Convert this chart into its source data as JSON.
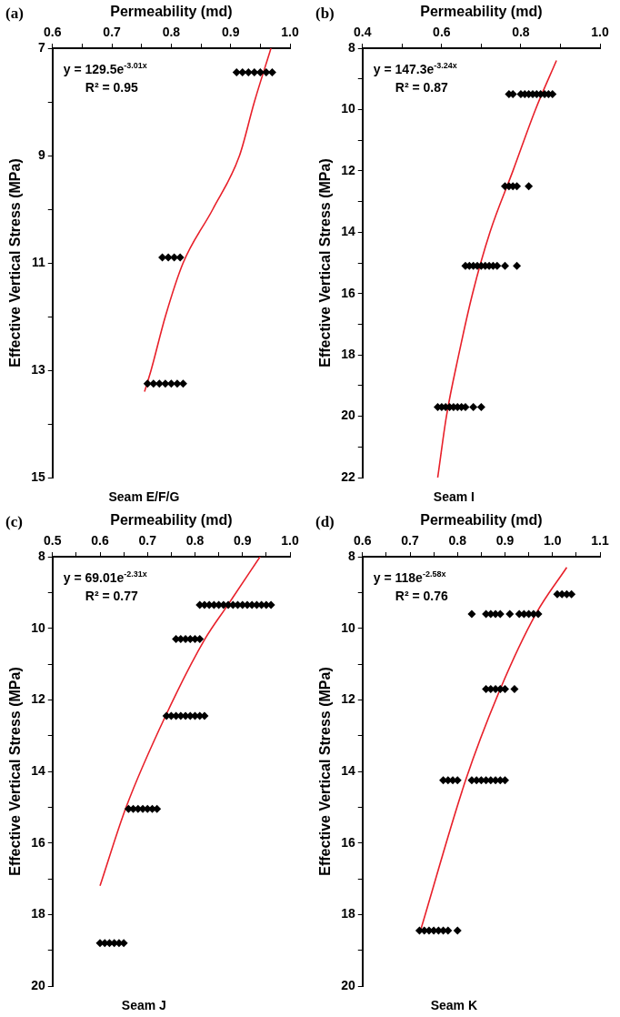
{
  "chart_data": [
    {
      "type": "scatter",
      "title": "(a)",
      "xlabel": "Permeability (md)",
      "ylabel": "Effective Vertical Stress (MPa)",
      "annotations": [
        "y = 129.5e$^{-3.01x}$",
        "R² = 0.95",
        "Seam E/F/G"
      ],
      "xlim": [
        0.6,
        1.0
      ],
      "xticks": [
        0.6,
        {
          "value": 0.65,
          "label": null
        },
        0.7,
        {
          "value": 0.75,
          "label": null
        },
        0.8,
        {
          "value": 0.85,
          "label": null
        },
        0.9,
        {
          "value": 0.95,
          "label": null
        },
        {
          "value": 1.0,
          "label": "1.0"
        }
      ],
      "ylim": [
        15,
        7
      ],
      "yticks": [
        7,
        {
          "value": 8,
          "label": null
        },
        9,
        {
          "value": 10,
          "label": null
        },
        11,
        {
          "value": 12,
          "label": null
        },
        13,
        {
          "value": 14,
          "label": null
        },
        15
      ],
      "grid": false,
      "legend": false,
      "series": [
        {
          "marker": "diamond",
          "color": "#000000",
          "x": [
            0.91,
            0.92,
            0.93,
            0.94,
            0.95,
            0.96,
            0.97,
            0.785,
            0.795,
            0.805,
            0.815,
            0.76,
            0.77,
            0.78,
            0.79,
            0.8,
            0.81,
            0.82
          ],
          "values": [
            7.45,
            7.45,
            7.45,
            7.45,
            7.45,
            7.45,
            7.45,
            10.9,
            10.9,
            10.9,
            10.9,
            13.25,
            13.25,
            13.25,
            13.25,
            13.25,
            13.25,
            13.25
          ]
        },
        {
          "type": "line",
          "marker": "none",
          "color": "#e8202a",
          "x": [
            0.968,
            0.94,
            0.915,
            0.87,
            0.82,
            0.79,
            0.766,
            0.755
          ],
          "values": [
            7,
            8,
            9,
            10,
            11,
            12,
            13,
            13.4
          ]
        }
      ]
    },
    {
      "type": "scatter",
      "title": "(b)",
      "xlabel": "Permeability (md)",
      "ylabel": "Effective Vertical Stress (MPa)",
      "annotations": [
        "y = 147.3e$^{-3.24x}$",
        "R² = 0.87",
        "Seam I"
      ],
      "xlim": [
        0.4,
        1.0
      ],
      "xticks": [
        0.4,
        {
          "value": 0.5,
          "label": null
        },
        0.6,
        {
          "value": 0.7,
          "label": null
        },
        0.8,
        {
          "value": 0.9,
          "label": null
        },
        {
          "value": 1.0,
          "label": "1.0"
        }
      ],
      "ylim": [
        22,
        8
      ],
      "yticks": [
        8,
        {
          "value": 9,
          "label": null
        },
        10,
        {
          "value": 11,
          "label": null
        },
        12,
        {
          "value": 13,
          "label": null
        },
        14,
        {
          "value": 15,
          "label": null
        },
        16,
        {
          "value": 17,
          "label": null
        },
        18,
        {
          "value": 19,
          "label": null
        },
        20,
        {
          "value": 21,
          "label": null
        },
        22
      ],
      "grid": false,
      "legend": false,
      "series": [
        {
          "marker": "diamond",
          "color": "#000000",
          "x": [
            0.77,
            0.78,
            0.8,
            0.81,
            0.82,
            0.83,
            0.84,
            0.85,
            0.86,
            0.87,
            0.88,
            0.76,
            0.77,
            0.78,
            0.79,
            0.82,
            0.66,
            0.67,
            0.68,
            0.69,
            0.7,
            0.71,
            0.72,
            0.73,
            0.74,
            0.76,
            0.79,
            0.59,
            0.6,
            0.61,
            0.62,
            0.63,
            0.64,
            0.65,
            0.66,
            0.68,
            0.7
          ],
          "values": [
            9.5,
            9.5,
            9.5,
            9.5,
            9.5,
            9.5,
            9.5,
            9.5,
            9.5,
            9.5,
            9.5,
            12.5,
            12.5,
            12.5,
            12.5,
            12.5,
            15.1,
            15.1,
            15.1,
            15.1,
            15.1,
            15.1,
            15.1,
            15.1,
            15.1,
            15.1,
            15.1,
            19.7,
            19.7,
            19.7,
            19.7,
            19.7,
            19.7,
            19.7,
            19.7,
            19.7,
            19.7
          ]
        },
        {
          "type": "line",
          "marker": "none",
          "color": "#e8202a",
          "x": [
            0.89,
            0.837,
            0.78,
            0.722,
            0.678,
            0.643,
            0.612,
            0.59
          ],
          "values": [
            8.4,
            10,
            12,
            14,
            16,
            18,
            20,
            22
          ]
        }
      ]
    },
    {
      "type": "scatter",
      "title": "(c)",
      "xlabel": "Permeability (md)",
      "ylabel": "Effective Vertical Stress (MPa)",
      "annotations": [
        "y = 69.01e$^{-2.31x}$",
        "R² = 0.77",
        "Seam J"
      ],
      "xlim": [
        0.5,
        1.0
      ],
      "xticks": [
        0.5,
        {
          "value": 0.55,
          "label": null
        },
        0.6,
        {
          "value": 0.65,
          "label": null
        },
        0.7,
        {
          "value": 0.75,
          "label": null
        },
        0.8,
        {
          "value": 0.85,
          "label": null
        },
        0.9,
        {
          "value": 0.95,
          "label": null
        },
        {
          "value": 1.0,
          "label": "1.0"
        }
      ],
      "ylim": [
        20,
        8
      ],
      "yticks": [
        8,
        {
          "value": 9,
          "label": null
        },
        10,
        {
          "value": 11,
          "label": null
        },
        12,
        {
          "value": 13,
          "label": null
        },
        14,
        {
          "value": 15,
          "label": null
        },
        16,
        {
          "value": 17,
          "label": null
        },
        18,
        {
          "value": 19,
          "label": null
        },
        20
      ],
      "grid": false,
      "legend": false,
      "series": [
        {
          "marker": "diamond",
          "color": "#000000",
          "x": [
            0.81,
            0.82,
            0.83,
            0.84,
            0.85,
            0.86,
            0.87,
            0.88,
            0.89,
            0.9,
            0.91,
            0.92,
            0.93,
            0.94,
            0.95,
            0.96,
            0.76,
            0.77,
            0.78,
            0.79,
            0.8,
            0.81,
            0.74,
            0.75,
            0.76,
            0.77,
            0.78,
            0.79,
            0.8,
            0.81,
            0.82,
            0.66,
            0.67,
            0.68,
            0.69,
            0.7,
            0.71,
            0.72,
            0.6,
            0.61,
            0.62,
            0.63,
            0.64,
            0.65
          ],
          "values": [
            9.35,
            9.35,
            9.35,
            9.35,
            9.35,
            9.35,
            9.35,
            9.35,
            9.35,
            9.35,
            9.35,
            9.35,
            9.35,
            9.35,
            9.35,
            9.35,
            10.3,
            10.3,
            10.3,
            10.3,
            10.3,
            10.3,
            12.45,
            12.45,
            12.45,
            12.45,
            12.45,
            12.45,
            12.45,
            12.45,
            12.45,
            15.05,
            15.05,
            15.05,
            15.05,
            15.05,
            15.05,
            15.05,
            18.8,
            18.8,
            18.8,
            18.8,
            18.8,
            18.8
          ]
        },
        {
          "type": "line",
          "marker": "none",
          "color": "#e8202a",
          "x": [
            0.937,
            0.869,
            0.821,
            0.738,
            0.655,
            0.6
          ],
          "values": [
            8,
            9.35,
            10.3,
            12.45,
            15,
            17.2
          ]
        }
      ]
    },
    {
      "type": "scatter",
      "title": "(d)",
      "xlabel": "Permeability (md)",
      "ylabel": "Effective Vertical Stress (MPa)",
      "annotations": [
        "y = 118e$^{-2.58x}$",
        "R² = 0.76",
        "Seam K"
      ],
      "xlim": [
        0.6,
        1.1
      ],
      "xticks": [
        0.6,
        {
          "value": 0.65,
          "label": null
        },
        0.7,
        {
          "value": 0.75,
          "label": null
        },
        0.8,
        {
          "value": 0.85,
          "label": null
        },
        0.9,
        {
          "value": 0.95,
          "label": null
        },
        {
          "value": 1.0,
          "label": "1.0"
        },
        {
          "value": 1.05,
          "label": null
        },
        1.1
      ],
      "ylim": [
        20,
        8
      ],
      "yticks": [
        8,
        {
          "value": 9,
          "label": null
        },
        10,
        {
          "value": 11,
          "label": null
        },
        12,
        {
          "value": 13,
          "label": null
        },
        14,
        {
          "value": 15,
          "label": null
        },
        16,
        {
          "value": 17,
          "label": null
        },
        18,
        {
          "value": 19,
          "label": null
        },
        20
      ],
      "grid": false,
      "legend": false,
      "series": [
        {
          "marker": "diamond",
          "color": "#000000",
          "x": [
            1.01,
            1.02,
            1.03,
            1.04,
            0.83,
            0.86,
            0.87,
            0.88,
            0.89,
            0.91,
            0.93,
            0.94,
            0.95,
            0.96,
            0.97,
            0.86,
            0.87,
            0.88,
            0.89,
            0.9,
            0.92,
            0.77,
            0.78,
            0.79,
            0.8,
            0.83,
            0.84,
            0.85,
            0.86,
            0.87,
            0.88,
            0.89,
            0.9,
            0.72,
            0.73,
            0.74,
            0.75,
            0.76,
            0.77,
            0.78,
            0.8
          ],
          "values": [
            9.05,
            9.05,
            9.05,
            9.05,
            9.6,
            9.6,
            9.6,
            9.6,
            9.6,
            9.6,
            9.6,
            9.6,
            9.6,
            9.6,
            9.6,
            11.7,
            11.7,
            11.7,
            11.7,
            11.7,
            11.7,
            14.25,
            14.25,
            14.25,
            14.25,
            14.25,
            14.25,
            14.25,
            14.25,
            14.25,
            14.25,
            14.25,
            14.25,
            18.45,
            18.45,
            18.45,
            18.45,
            18.45,
            18.45,
            18.45,
            18.45
          ]
        },
        {
          "type": "line",
          "marker": "none",
          "color": "#e8202a",
          "x": [
            1.03,
            0.965,
            0.89,
            0.817,
            0.722
          ],
          "values": [
            8.3,
            9.6,
            11.7,
            14.25,
            18.45
          ]
        }
      ]
    }
  ]
}
